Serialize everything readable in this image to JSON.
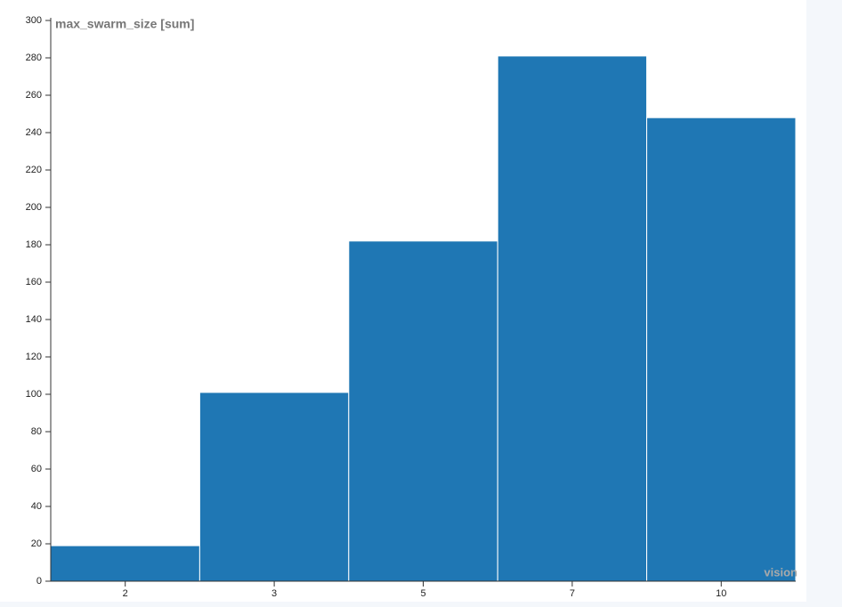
{
  "chart_data": {
    "type": "bar",
    "title": "max_swarm_size [sum]",
    "x_label": "vision",
    "categories": [
      "2",
      "3",
      "5",
      "7",
      "10"
    ],
    "values": [
      19,
      101,
      182,
      281,
      248
    ],
    "color": "#1f77b4",
    "ylim": [
      0,
      300
    ],
    "yticks": [
      0,
      20,
      40,
      60,
      80,
      100,
      120,
      140,
      160,
      180,
      200,
      220,
      240,
      260,
      280,
      300
    ]
  }
}
